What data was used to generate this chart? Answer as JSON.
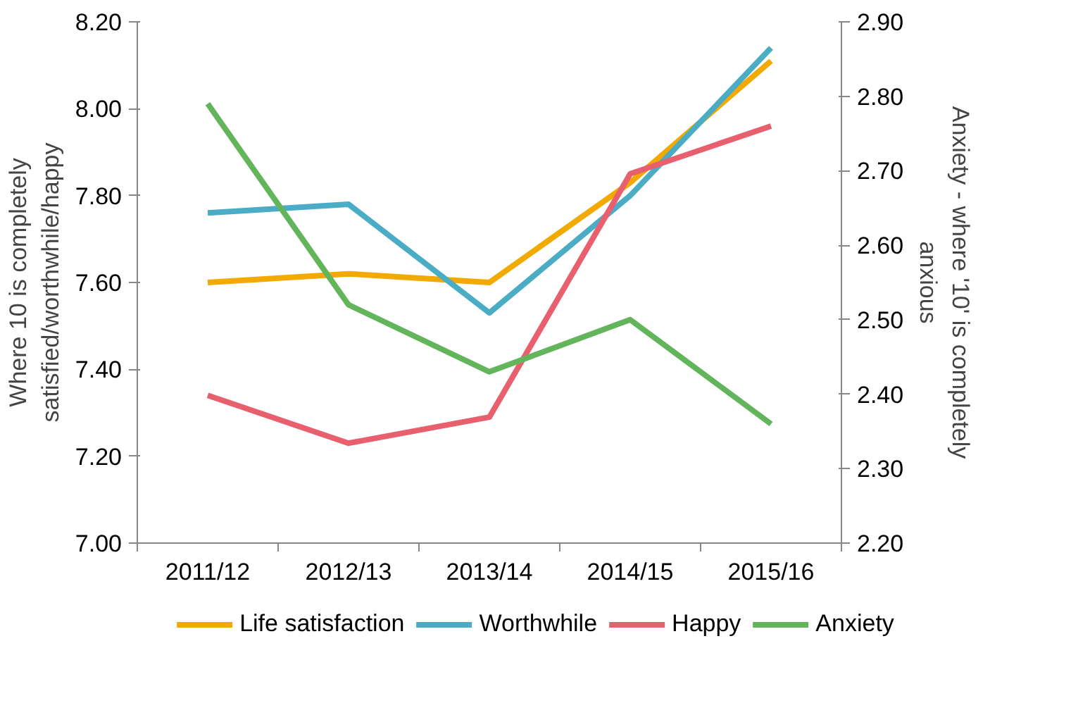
{
  "chart_data": {
    "type": "line",
    "categories": [
      "2011/12",
      "2012/13",
      "2013/14",
      "2014/15",
      "2015/16"
    ],
    "ylabel": "Where 10 is completely satisfied/worthwhile/happy",
    "y2label": "Anxiety - where '10' is completely anxious",
    "ylim": [
      7.0,
      8.2
    ],
    "yticks": [
      {
        "value": 7.0,
        "label": "7.00"
      },
      {
        "value": 7.2,
        "label": "7.20"
      },
      {
        "value": 7.4,
        "label": "7.40"
      },
      {
        "value": 7.6,
        "label": "7.60"
      },
      {
        "value": 7.8,
        "label": "7.80"
      },
      {
        "value": 8.0,
        "label": "8.00"
      },
      {
        "value": 8.2,
        "label": "8.20"
      }
    ],
    "y2lim": [
      2.2,
      2.9
    ],
    "y2ticks": [
      {
        "value": 2.2,
        "label": "2.20"
      },
      {
        "value": 2.3,
        "label": "2.30"
      },
      {
        "value": 2.4,
        "label": "2.40"
      },
      {
        "value": 2.5,
        "label": "2.50"
      },
      {
        "value": 2.6,
        "label": "2.60"
      },
      {
        "value": 2.7,
        "label": "2.70"
      },
      {
        "value": 2.8,
        "label": "2.80"
      },
      {
        "value": 2.9,
        "label": "2.90"
      }
    ],
    "series": [
      {
        "name": "Life satisfaction",
        "color": "#f2a900",
        "values": [
          7.6,
          7.62,
          7.6,
          7.83,
          8.11
        ]
      },
      {
        "name": "Worthwhile",
        "color": "#4bacc6",
        "values": [
          7.76,
          7.78,
          7.53,
          7.8,
          8.14
        ]
      },
      {
        "name": "Happy",
        "color": "#e8606e",
        "values": [
          7.34,
          7.23,
          7.29,
          7.85,
          7.96
        ]
      },
      {
        "name": "Anxiety",
        "color": "#62b55a",
        "axis": "y2",
        "values": [
          2.79,
          2.52,
          2.43,
          2.5,
          2.36
        ]
      }
    ],
    "grid": false,
    "legend": "bottom",
    "marker": "none",
    "line_style": "solid"
  }
}
